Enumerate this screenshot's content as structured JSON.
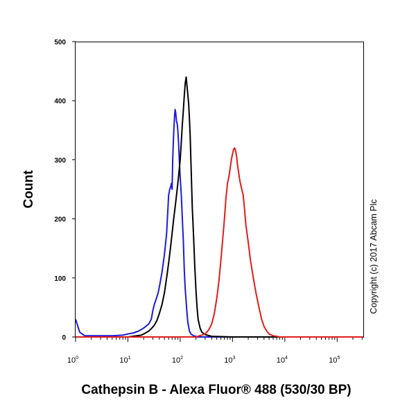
{
  "chart_data": {
    "type": "line",
    "xlabel": "Cathepsin B - Alexa Fluor® 488 (530/30 BP)",
    "ylabel": "Count",
    "x_scale": "log",
    "xlim": [
      1,
      316228
    ],
    "ylim": [
      0,
      500
    ],
    "y_ticks": [
      "0",
      "100",
      "200",
      "300",
      "400",
      "500"
    ],
    "x_ticks": [
      {
        "base": "10",
        "exp": "0"
      },
      {
        "base": "10",
        "exp": "1"
      },
      {
        "base": "10",
        "exp": "2"
      },
      {
        "base": "10",
        "exp": "3"
      },
      {
        "base": "10",
        "exp": "4"
      },
      {
        "base": "10",
        "exp": "5"
      }
    ],
    "grid": false,
    "annotation": "Copyright (c) 2017 Abcam Plc",
    "series": [
      {
        "color": "#1a1adb",
        "x": [
          1,
          1.05,
          1.2,
          1.5,
          3,
          5,
          8,
          10,
          13,
          16,
          20,
          25,
          28,
          30,
          32,
          35,
          38,
          41,
          45,
          50,
          55,
          58,
          60,
          63,
          66,
          68,
          70,
          72,
          74,
          76,
          78,
          80,
          82,
          85,
          88,
          90,
          93,
          96,
          100,
          105,
          110,
          115,
          120,
          125,
          130,
          135,
          140,
          150,
          160,
          180,
          200,
          220,
          300,
          1000,
          10000,
          316228
        ],
        "y": [
          30,
          24,
          8,
          2,
          2,
          2,
          3,
          5,
          7,
          10,
          15,
          22,
          30,
          45,
          55,
          65,
          75,
          90,
          110,
          140,
          175,
          215,
          240,
          250,
          255,
          260,
          250,
          300,
          330,
          355,
          375,
          385,
          380,
          365,
          360,
          350,
          330,
          300,
          270,
          240,
          200,
          160,
          110,
          80,
          60,
          40,
          25,
          10,
          5,
          2,
          1,
          0,
          0,
          0,
          0,
          0
        ]
      },
      {
        "color": "#000000",
        "x": [
          1,
          10,
          15,
          18,
          20,
          22,
          25,
          28,
          32,
          36,
          40,
          45,
          50,
          55,
          60,
          65,
          70,
          75,
          80,
          85,
          90,
          95,
          100,
          105,
          110,
          115,
          120,
          125,
          130,
          135,
          140,
          145,
          150,
          155,
          160,
          165,
          170,
          180,
          190,
          200,
          210,
          220,
          240,
          260,
          300,
          400,
          1000,
          316228
        ],
        "y": [
          0,
          0,
          2,
          3,
          5,
          7,
          10,
          14,
          20,
          28,
          40,
          55,
          75,
          100,
          125,
          150,
          175,
          200,
          220,
          240,
          260,
          280,
          300,
          330,
          360,
          385,
          410,
          430,
          440,
          425,
          410,
          395,
          370,
          340,
          300,
          260,
          220,
          170,
          120,
          80,
          50,
          30,
          15,
          8,
          4,
          1,
          0,
          0
        ]
      },
      {
        "color": "#e11b1b",
        "x": [
          1,
          100,
          200,
          300,
          350,
          400,
          450,
          500,
          550,
          600,
          650,
          700,
          750,
          800,
          850,
          900,
          950,
          1000,
          1050,
          1100,
          1150,
          1200,
          1250,
          1300,
          1350,
          1400,
          1500,
          1600,
          1700,
          1800,
          2000,
          2200,
          2500,
          2800,
          3200,
          3600,
          4000,
          4500,
          5000,
          6000,
          7000,
          8000,
          10000,
          316228
        ],
        "y": [
          0,
          0,
          0,
          5,
          12,
          22,
          40,
          65,
          95,
          130,
          165,
          200,
          235,
          260,
          270,
          285,
          300,
          310,
          318,
          320,
          315,
          305,
          290,
          280,
          270,
          262,
          250,
          240,
          215,
          190,
          160,
          130,
          100,
          75,
          50,
          30,
          18,
          10,
          5,
          2,
          1,
          0,
          0,
          0
        ]
      }
    ]
  }
}
